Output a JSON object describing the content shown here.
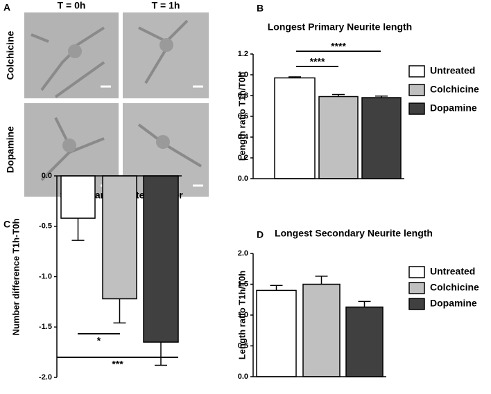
{
  "panel_labels": [
    "A",
    "B",
    "C",
    "D"
  ],
  "microscopy": {
    "columns": [
      "T = 0h",
      "T = 1h"
    ],
    "rows": [
      "Colchicine",
      "Dopamine"
    ]
  },
  "chart_data": [
    {
      "type": "bar",
      "title": "Longest Primary Neurite length",
      "ylabel": "Length ratio T1h/T0h",
      "categories": [
        null
      ],
      "ylim": [
        0,
        1.2
      ],
      "yticks": [
        {
          "value": 0,
          "label": "0.0"
        },
        0.2,
        0.4,
        0.6,
        0.8,
        {
          "value": 1,
          "label": "1.0"
        },
        1.2
      ],
      "legend": true,
      "series": [
        {
          "name": "Untreated",
          "color": "#ffffff",
          "values": [
            0.97
          ],
          "errors": [
            0.01
          ]
        },
        {
          "name": "Colchicine",
          "color": "#c0c0c0",
          "values": [
            0.79
          ],
          "errors": [
            0.02
          ]
        },
        {
          "name": "Dopamine",
          "color": "#404040",
          "values": [
            0.78
          ],
          "errors": [
            0.015
          ]
        }
      ],
      "annotations": [
        "****",
        "****"
      ]
    },
    {
      "type": "bar",
      "title": "Secondary neurite number",
      "ylabel": "Number difference T1h-T0h",
      "categories": [
        null
      ],
      "ylim": [
        -2,
        0
      ],
      "yticks": [
        {
          "value": 0,
          "label": "0.0"
        },
        -0.5,
        {
          "value": -1,
          "label": "-1.0"
        },
        -1.5,
        {
          "value": -2,
          "label": "-2.0"
        }
      ],
      "legend": false,
      "series": [
        {
          "name": "Untreated",
          "color": "#ffffff",
          "values": [
            -0.42
          ],
          "errors": [
            0.22
          ]
        },
        {
          "name": "Colchicine",
          "color": "#c0c0c0",
          "values": [
            -1.22
          ],
          "errors": [
            0.24
          ]
        },
        {
          "name": "Dopamine",
          "color": "#404040",
          "values": [
            -1.65
          ],
          "errors": [
            0.23
          ]
        }
      ],
      "annotations": [
        "*",
        "***"
      ]
    },
    {
      "type": "bar",
      "title": "Longest Secondary Neurite length",
      "ylabel": "Length ratio T1h/T0h",
      "categories": [
        null
      ],
      "ylim": [
        0,
        2
      ],
      "yticks": [
        {
          "value": 0,
          "label": "0.0"
        },
        {
          "value": 0.5,
          "label": "0.5"
        },
        {
          "value": 1,
          "label": "1.0"
        },
        {
          "value": 1.5,
          "label": "1.5"
        },
        {
          "value": 2,
          "label": "2.0"
        }
      ],
      "legend": true,
      "series": [
        {
          "name": "Untreated",
          "color": "#ffffff",
          "values": [
            1.4
          ],
          "errors": [
            0.08
          ]
        },
        {
          "name": "Colchicine",
          "color": "#c0c0c0",
          "values": [
            1.5
          ],
          "errors": [
            0.13
          ]
        },
        {
          "name": "Dopamine",
          "color": "#404040",
          "values": [
            1.13
          ],
          "errors": [
            0.09
          ]
        }
      ],
      "annotations": []
    }
  ]
}
